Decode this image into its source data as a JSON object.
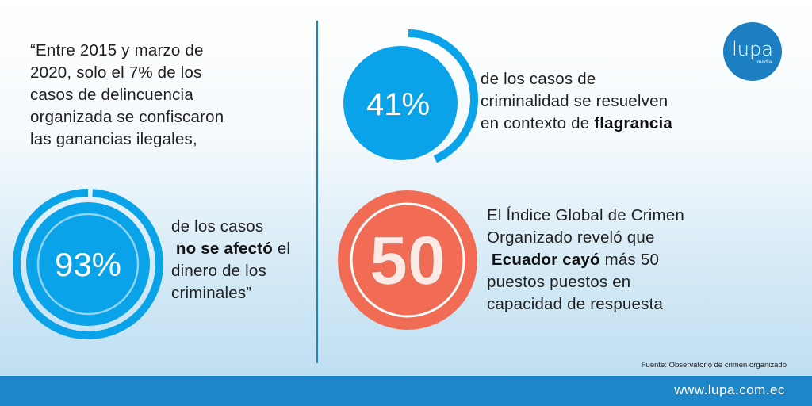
{
  "quote": {
    "line1": "“Entre 2015 y marzo de",
    "line2": "2020, solo el 7% de los",
    "line3": "casos de delincuencia",
    "line4": "organizada se confiscaron",
    "line5": "las ganancias ilegales,"
  },
  "stat93": {
    "value": "93%",
    "line1": "de los casos",
    "bold": "no se afectó",
    "after_bold": " el",
    "line3": "dinero de los",
    "line4": "criminales”"
  },
  "stat41": {
    "value": "41%",
    "line1": "de los casos de",
    "line2": "criminalidad se resuelven",
    "line3_pre": "en contexto de ",
    "bold": "flagrancia"
  },
  "stat50": {
    "value": "50",
    "line1": "El Índice Global de Crimen",
    "line2": "Organizado reveló que",
    "bold": "Ecuador cayó",
    "after_bold": " más 50",
    "line4": "puestos puestos en",
    "line5": "capacidad de respuesta"
  },
  "source": "Fuente: Observatorio de crimen organizado",
  "footer_url": "www.lupa.com.ec",
  "logo": {
    "word": "lupa",
    "sub": "media"
  },
  "colors": {
    "blue": "#0aa3ea",
    "coral": "#f26b55",
    "footer": "#1d87c9",
    "divider": "#1c83c6"
  }
}
